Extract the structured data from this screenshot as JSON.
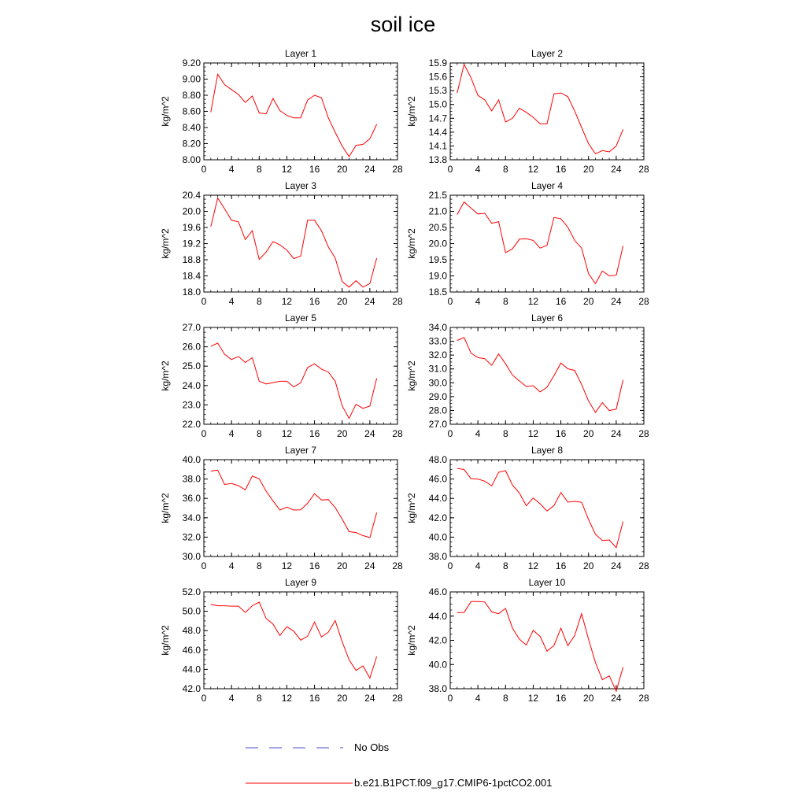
{
  "title": "soil ice",
  "legend": {
    "items": [
      {
        "label": "No Obs",
        "color": "#4b4bc8",
        "dash": "dashed"
      },
      {
        "label": "b.e21.B1PCT.f09_g17.CMIP6-1pctCO2.001",
        "color": "#ff0000",
        "dash": "solid"
      }
    ]
  },
  "chart_data": [
    {
      "type": "line",
      "title": "Layer 1",
      "ylabel": "kg/m^2",
      "xlim": [
        0,
        28
      ],
      "ylim": [
        8.0,
        9.2
      ],
      "xticks": [
        0,
        4,
        8,
        12,
        16,
        20,
        24,
        28
      ],
      "yticks": [
        8.0,
        8.2,
        8.4,
        8.6,
        8.8,
        9.0,
        9.2
      ],
      "ydecimals": 2,
      "series": [
        {
          "color": "#ff0000",
          "x": [
            1,
            2,
            3,
            4,
            5,
            6,
            7,
            8,
            9,
            10,
            11,
            12,
            13,
            14,
            15,
            16,
            17,
            18,
            19,
            20,
            21,
            22,
            23,
            24,
            25
          ],
          "values": [
            8.59,
            9.06,
            8.93,
            8.87,
            8.81,
            8.71,
            8.79,
            8.58,
            8.57,
            8.76,
            8.61,
            8.55,
            8.52,
            8.52,
            8.74,
            8.8,
            8.77,
            8.52,
            8.34,
            8.17,
            8.04,
            8.18,
            8.19,
            8.26,
            8.44
          ]
        }
      ]
    },
    {
      "type": "line",
      "title": "Layer 2",
      "ylabel": "kg/m^2",
      "xlim": [
        0,
        28
      ],
      "ylim": [
        13.8,
        15.9
      ],
      "xticks": [
        0,
        4,
        8,
        12,
        16,
        20,
        24,
        28
      ],
      "yticks": [
        13.8,
        14.1,
        14.4,
        14.7,
        15.0,
        15.3,
        15.6,
        15.9
      ],
      "ydecimals": 1,
      "series": [
        {
          "color": "#ff0000",
          "x": [
            1,
            2,
            3,
            4,
            5,
            6,
            7,
            8,
            9,
            10,
            11,
            12,
            13,
            14,
            15,
            16,
            17,
            18,
            19,
            20,
            21,
            22,
            23,
            24,
            25
          ],
          "values": [
            15.25,
            15.87,
            15.58,
            15.2,
            15.1,
            14.86,
            15.1,
            14.62,
            14.7,
            14.92,
            14.83,
            14.72,
            14.58,
            14.58,
            15.23,
            15.25,
            15.17,
            14.86,
            14.5,
            14.15,
            13.93,
            14.0,
            13.97,
            14.1,
            14.46
          ]
        }
      ]
    },
    {
      "type": "line",
      "title": "Layer 3",
      "ylabel": "kg/m^2",
      "xlim": [
        0,
        28
      ],
      "ylim": [
        18.0,
        20.4
      ],
      "xticks": [
        0,
        4,
        8,
        12,
        16,
        20,
        24,
        28
      ],
      "yticks": [
        18.0,
        18.4,
        18.8,
        19.2,
        19.6,
        20.0,
        20.4
      ],
      "ydecimals": 1,
      "series": [
        {
          "color": "#ff0000",
          "x": [
            1,
            2,
            3,
            4,
            5,
            6,
            7,
            8,
            9,
            10,
            11,
            12,
            13,
            14,
            15,
            16,
            17,
            18,
            19,
            20,
            21,
            22,
            23,
            24,
            25
          ],
          "values": [
            19.62,
            20.33,
            20.06,
            19.78,
            19.74,
            19.3,
            19.52,
            18.81,
            18.99,
            19.25,
            19.17,
            19.04,
            18.83,
            18.89,
            19.78,
            19.78,
            19.52,
            19.12,
            18.84,
            18.26,
            18.12,
            18.28,
            18.12,
            18.21,
            18.84
          ]
        }
      ]
    },
    {
      "type": "line",
      "title": "Layer 4",
      "ylabel": "kg/m^2",
      "xlim": [
        0,
        28
      ],
      "ylim": [
        18.5,
        21.5
      ],
      "xticks": [
        0,
        4,
        8,
        12,
        16,
        20,
        24,
        28
      ],
      "yticks": [
        18.5,
        19.0,
        19.5,
        20.0,
        20.5,
        21.0,
        21.5
      ],
      "ydecimals": 1,
      "series": [
        {
          "color": "#ff0000",
          "x": [
            1,
            2,
            3,
            4,
            5,
            6,
            7,
            8,
            9,
            10,
            11,
            12,
            13,
            14,
            15,
            16,
            17,
            18,
            19,
            20,
            21,
            22,
            23,
            24,
            25
          ],
          "values": [
            20.9,
            21.29,
            21.1,
            20.92,
            20.94,
            20.63,
            20.68,
            19.72,
            19.84,
            20.14,
            20.15,
            20.1,
            19.86,
            19.95,
            20.81,
            20.77,
            20.51,
            20.1,
            19.86,
            19.07,
            18.76,
            19.15,
            19.0,
            19.02,
            19.93
          ]
        }
      ]
    },
    {
      "type": "line",
      "title": "Layer 5",
      "ylabel": "kg/m^2",
      "xlim": [
        0,
        28
      ],
      "ylim": [
        22.0,
        27.0
      ],
      "xticks": [
        0,
        4,
        8,
        12,
        16,
        20,
        24,
        28
      ],
      "yticks": [
        22.0,
        23.0,
        24.0,
        25.0,
        26.0,
        27.0
      ],
      "ydecimals": 1,
      "series": [
        {
          "color": "#ff0000",
          "x": [
            1,
            2,
            3,
            4,
            5,
            6,
            7,
            8,
            9,
            10,
            11,
            12,
            13,
            14,
            15,
            16,
            17,
            18,
            19,
            20,
            21,
            22,
            23,
            24,
            25
          ],
          "values": [
            26.03,
            26.19,
            25.61,
            25.34,
            25.5,
            25.19,
            25.44,
            24.22,
            24.08,
            24.15,
            24.22,
            24.22,
            23.93,
            24.14,
            24.93,
            25.12,
            24.85,
            24.7,
            24.22,
            22.95,
            22.3,
            23.03,
            22.82,
            22.94,
            24.38
          ]
        }
      ]
    },
    {
      "type": "line",
      "title": "Layer 6",
      "ylabel": "kg/m^2",
      "xlim": [
        0,
        28
      ],
      "ylim": [
        27.0,
        34.0
      ],
      "xticks": [
        0,
        4,
        8,
        12,
        16,
        20,
        24,
        28
      ],
      "yticks": [
        27.0,
        28.0,
        29.0,
        30.0,
        31.0,
        32.0,
        33.0,
        34.0
      ],
      "ydecimals": 1,
      "series": [
        {
          "color": "#ff0000",
          "x": [
            1,
            2,
            3,
            4,
            5,
            6,
            7,
            8,
            9,
            10,
            11,
            12,
            13,
            14,
            15,
            16,
            17,
            18,
            19,
            20,
            21,
            22,
            23,
            24,
            25
          ],
          "values": [
            33.06,
            33.27,
            32.14,
            31.82,
            31.74,
            31.26,
            32.08,
            31.37,
            30.55,
            30.13,
            29.73,
            29.79,
            29.34,
            29.68,
            30.51,
            31.43,
            31.01,
            30.89,
            29.88,
            28.69,
            27.85,
            28.56,
            27.99,
            28.09,
            30.21
          ]
        }
      ]
    },
    {
      "type": "line",
      "title": "Layer 7",
      "ylabel": "kg/m^2",
      "xlim": [
        0,
        28
      ],
      "ylim": [
        30.0,
        40.0
      ],
      "xticks": [
        0,
        4,
        8,
        12,
        16,
        20,
        24,
        28
      ],
      "yticks": [
        30.0,
        32.0,
        34.0,
        36.0,
        38.0,
        40.0
      ],
      "ydecimals": 1,
      "series": [
        {
          "color": "#ff0000",
          "x": [
            1,
            2,
            3,
            4,
            5,
            6,
            7,
            8,
            9,
            10,
            11,
            12,
            13,
            14,
            15,
            16,
            17,
            18,
            19,
            20,
            21,
            22,
            23,
            24,
            25
          ],
          "values": [
            38.82,
            38.92,
            37.43,
            37.55,
            37.31,
            36.89,
            38.31,
            38.02,
            36.75,
            35.74,
            34.8,
            35.1,
            34.8,
            34.82,
            35.5,
            36.49,
            35.84,
            35.88,
            35.05,
            33.86,
            32.57,
            32.47,
            32.16,
            31.94,
            34.54
          ]
        }
      ]
    },
    {
      "type": "line",
      "title": "Layer 8",
      "ylabel": "kg/m^2",
      "xlim": [
        0,
        28
      ],
      "ylim": [
        38.0,
        48.0
      ],
      "xticks": [
        0,
        4,
        8,
        12,
        16,
        20,
        24,
        28
      ],
      "yticks": [
        38.0,
        40.0,
        42.0,
        44.0,
        46.0,
        48.0
      ],
      "ydecimals": 1,
      "series": [
        {
          "color": "#ff0000",
          "x": [
            1,
            2,
            3,
            4,
            5,
            6,
            7,
            8,
            9,
            10,
            11,
            12,
            13,
            14,
            15,
            16,
            17,
            18,
            19,
            20,
            21,
            22,
            23,
            24,
            25
          ],
          "values": [
            47.1,
            46.98,
            46.04,
            46.0,
            45.78,
            45.29,
            46.7,
            46.86,
            45.37,
            44.55,
            43.24,
            44.04,
            43.45,
            42.7,
            43.26,
            44.6,
            43.62,
            43.69,
            43.6,
            41.82,
            40.29,
            39.65,
            39.71,
            38.92,
            41.62
          ]
        }
      ]
    },
    {
      "type": "line",
      "title": "Layer 9",
      "ylabel": "kg/m^2",
      "xlim": [
        0,
        28
      ],
      "ylim": [
        42.0,
        52.0
      ],
      "xticks": [
        0,
        4,
        8,
        12,
        16,
        20,
        24,
        28
      ],
      "yticks": [
        42.0,
        44.0,
        46.0,
        48.0,
        50.0,
        52.0
      ],
      "ydecimals": 1,
      "series": [
        {
          "color": "#ff0000",
          "x": [
            1,
            2,
            3,
            4,
            5,
            6,
            7,
            8,
            9,
            10,
            11,
            12,
            13,
            14,
            15,
            16,
            17,
            18,
            19,
            20,
            21,
            22,
            23,
            24,
            25
          ],
          "values": [
            50.71,
            50.57,
            50.57,
            50.53,
            50.53,
            49.88,
            50.57,
            50.94,
            49.27,
            48.67,
            47.5,
            48.41,
            47.94,
            47.02,
            47.42,
            48.89,
            47.34,
            47.84,
            49.03,
            46.86,
            44.98,
            43.89,
            44.36,
            43.1,
            45.33
          ]
        }
      ]
    },
    {
      "type": "line",
      "title": "Layer 10",
      "ylabel": "kg/m^2",
      "xlim": [
        0,
        28
      ],
      "ylim": [
        38.0,
        46.0
      ],
      "xticks": [
        0,
        4,
        8,
        12,
        16,
        20,
        24,
        28
      ],
      "yticks": [
        38.0,
        40.0,
        42.0,
        44.0,
        46.0
      ],
      "ydecimals": 1,
      "series": [
        {
          "color": "#ff0000",
          "x": [
            1,
            2,
            3,
            4,
            5,
            6,
            7,
            8,
            9,
            10,
            11,
            12,
            13,
            14,
            15,
            16,
            17,
            18,
            19,
            20,
            21,
            22,
            23,
            24,
            25
          ],
          "values": [
            44.28,
            44.3,
            45.2,
            45.2,
            45.17,
            44.35,
            44.2,
            44.64,
            43.0,
            42.1,
            41.6,
            42.83,
            42.32,
            41.1,
            41.57,
            43.0,
            41.56,
            42.39,
            44.2,
            42.1,
            40.16,
            38.75,
            39.06,
            37.79,
            39.79
          ]
        }
      ]
    }
  ]
}
